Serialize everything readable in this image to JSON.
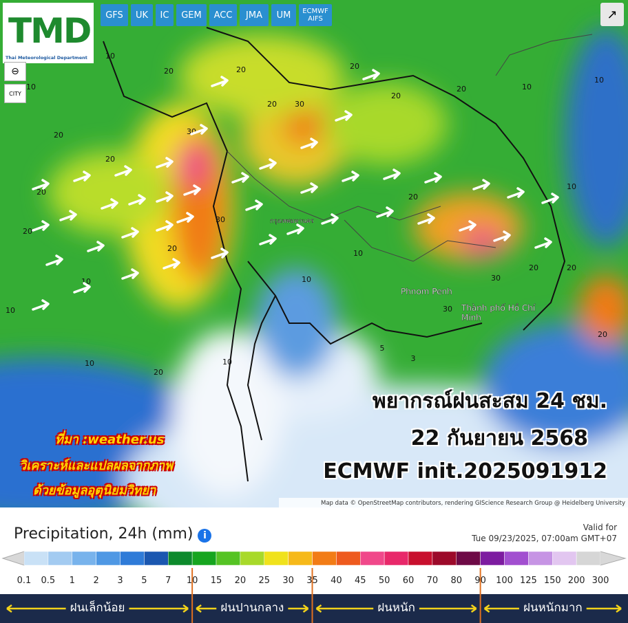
{
  "header": {
    "logo_text": "TMD",
    "logo_subtitle": "Thai Meteorological Department",
    "models": [
      "GFS",
      "UK",
      "IC",
      "GEM",
      "ACC",
      "JMA",
      "UM",
      "ECMWF AIFS"
    ],
    "city_button": "CITY"
  },
  "map": {
    "labels": [
      "Phnom Penh",
      "Thành phố Hồ Chí Minh",
      "กรุงเทพมหานคร"
    ],
    "contour_labels": [
      "10",
      "20",
      "20",
      "20",
      "30",
      "20",
      "20",
      "20",
      "10",
      "10",
      "20",
      "20",
      "30",
      "30",
      "20",
      "20",
      "20",
      "10",
      "10",
      "10",
      "20",
      "30",
      "20",
      "20",
      "10",
      "20",
      "10",
      "20",
      "10",
      "5",
      "3",
      "10",
      "30",
      "10"
    ],
    "attribution": "Map data © OpenStreetMap contributors, rendering GIScience Research Group @ Heidelberg University"
  },
  "overlay": {
    "title": "พยากรณ์ฝนสะสม 24 ชม.",
    "date": "22 กันยายน 2568",
    "model_init": "ECMWF init.2025091912",
    "source": "ที่มา :weather.us",
    "note_1": "วิเคราะห์และแปลผลจากภาพ",
    "note_2": "ด้วยข้อมูลอุตุนิยมวิทยา"
  },
  "legend": {
    "title": "Precipitation, 24h (mm)",
    "valid_label": "Valid for",
    "valid_time": "Tue 09/23/2025, 07:00am GMT+07",
    "ticks": [
      0.1,
      0.5,
      1,
      2,
      3,
      5,
      7,
      10,
      15,
      20,
      25,
      30,
      35,
      40,
      45,
      50,
      60,
      70,
      80,
      90,
      100,
      125,
      150,
      200,
      300
    ],
    "colors": [
      "#c9e1f6",
      "#a3cbf1",
      "#78b3ec",
      "#4f98e4",
      "#2f7bd8",
      "#1b57b0",
      "#0d8a2c",
      "#16a51f",
      "#55c324",
      "#a8d92a",
      "#f0e21c",
      "#f6b91a",
      "#f27c16",
      "#ee5a1e",
      "#f0488a",
      "#e8286a",
      "#c8102e",
      "#9c0a2a",
      "#6e0a46",
      "#7d1ca0",
      "#a24fd0",
      "#c694e4",
      "#e2c6f0",
      "#d6d6d6"
    ],
    "categories": [
      "ฝนเล็กน้อย",
      "ฝนปานกลาง",
      "ฝนหนัก",
      "ฝนหนักมาก"
    ]
  }
}
